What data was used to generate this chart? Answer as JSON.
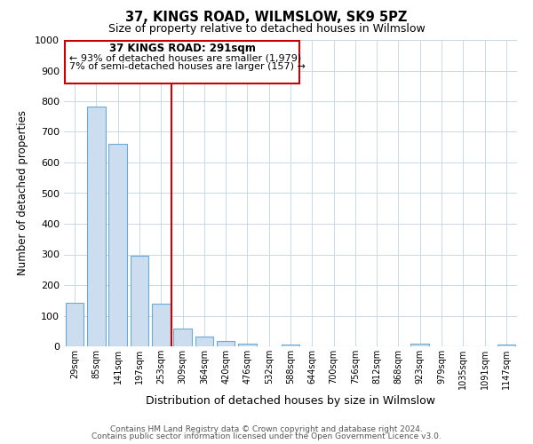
{
  "title": "37, KINGS ROAD, WILMSLOW, SK9 5PZ",
  "subtitle": "Size of property relative to detached houses in Wilmslow",
  "xlabel": "Distribution of detached houses by size in Wilmslow",
  "ylabel": "Number of detached properties",
  "bar_labels": [
    "29sqm",
    "85sqm",
    "141sqm",
    "197sqm",
    "253sqm",
    "309sqm",
    "364sqm",
    "420sqm",
    "476sqm",
    "532sqm",
    "588sqm",
    "644sqm",
    "700sqm",
    "756sqm",
    "812sqm",
    "868sqm",
    "923sqm",
    "979sqm",
    "1035sqm",
    "1091sqm",
    "1147sqm"
  ],
  "bar_values": [
    143,
    783,
    660,
    295,
    138,
    57,
    31,
    17,
    8,
    0,
    5,
    0,
    0,
    0,
    0,
    0,
    10,
    0,
    0,
    0,
    5
  ],
  "bar_color": "#ccddf0",
  "bar_edge_color": "#6aaad4",
  "vline_pos": 4.5,
  "vline_color": "#cc0000",
  "ylim": [
    0,
    1000
  ],
  "yticks": [
    0,
    100,
    200,
    300,
    400,
    500,
    600,
    700,
    800,
    900,
    1000
  ],
  "annotation_title": "37 KINGS ROAD: 291sqm",
  "annotation_line1": "← 93% of detached houses are smaller (1,979)",
  "annotation_line2": "7% of semi-detached houses are larger (157) →",
  "annotation_box_color": "#cc0000",
  "grid_color": "#c8d8ea",
  "footer1": "Contains HM Land Registry data © Crown copyright and database right 2024.",
  "footer2": "Contains public sector information licensed under the Open Government Licence v3.0."
}
